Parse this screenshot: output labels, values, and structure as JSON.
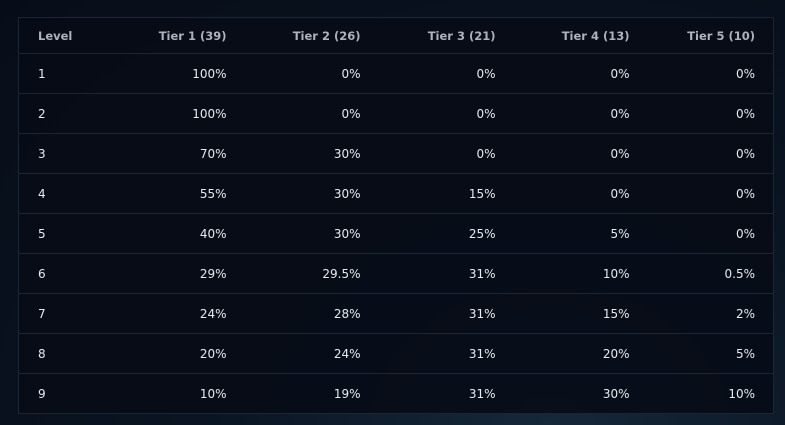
{
  "table": {
    "header": [
      "Level",
      "Tier 1 (39)",
      "Tier 2 (26)",
      "Tier 3 (21)",
      "Tier 4 (13)",
      "Tier 5 (10)"
    ],
    "rows": [
      [
        "1",
        "100%",
        "0%",
        "0%",
        "0%",
        "0%"
      ],
      [
        "2",
        "100%",
        "0%",
        "0%",
        "0%",
        "0%"
      ],
      [
        "3",
        "70%",
        "30%",
        "0%",
        "0%",
        "0%"
      ],
      [
        "4",
        "55%",
        "30%",
        "15%",
        "0%",
        "0%"
      ],
      [
        "5",
        "40%",
        "30%",
        "25%",
        "5%",
        "0%"
      ],
      [
        "6",
        "29%",
        "29.5%",
        "31%",
        "10%",
        "0.5%"
      ],
      [
        "7",
        "24%",
        "28%",
        "31%",
        "15%",
        "2%"
      ],
      [
        "8",
        "20%",
        "24%",
        "31%",
        "20%",
        "5%"
      ],
      [
        "9",
        "10%",
        "19%",
        "31%",
        "30%",
        "10%"
      ]
    ]
  }
}
